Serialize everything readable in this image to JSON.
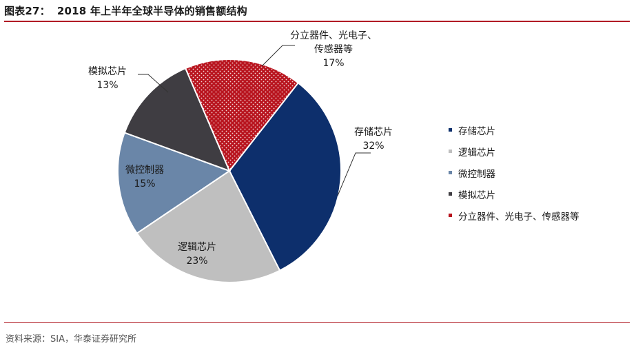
{
  "figure": {
    "label": "图表27：",
    "title": "2018 年上半年全球半导体的销售额结构",
    "source": "资料来源：SIA，华泰证券研究所"
  },
  "chart_data": {
    "type": "pie",
    "unit": "%",
    "slices": [
      {
        "name": "存储芯片",
        "value": 32,
        "label_lines": [
          "存储芯片"
        ],
        "pct": "32%",
        "color": "#0d2f6c",
        "pattern": "solid"
      },
      {
        "name": "逻辑芯片",
        "value": 23,
        "label_lines": [
          "逻辑芯片"
        ],
        "pct": "23%",
        "color": "#bfbfbf",
        "pattern": "solid"
      },
      {
        "name": "微控制器",
        "value": 15,
        "label_lines": [
          "微控制器"
        ],
        "pct": "15%",
        "color": "#6a86a8",
        "pattern": "solid"
      },
      {
        "name": "模拟芯片",
        "value": 13,
        "label_lines": [
          "模拟芯片"
        ],
        "pct": "13%",
        "color": "#3f3d42",
        "pattern": "solid"
      },
      {
        "name": "分立器件、光电子、传感器等",
        "value": 17,
        "label_lines": [
          "分立器件、光电子、",
          "传感器等"
        ],
        "pct": "17%",
        "color": "#b8141e",
        "pattern": "dotted"
      }
    ],
    "legend_position": "right"
  }
}
